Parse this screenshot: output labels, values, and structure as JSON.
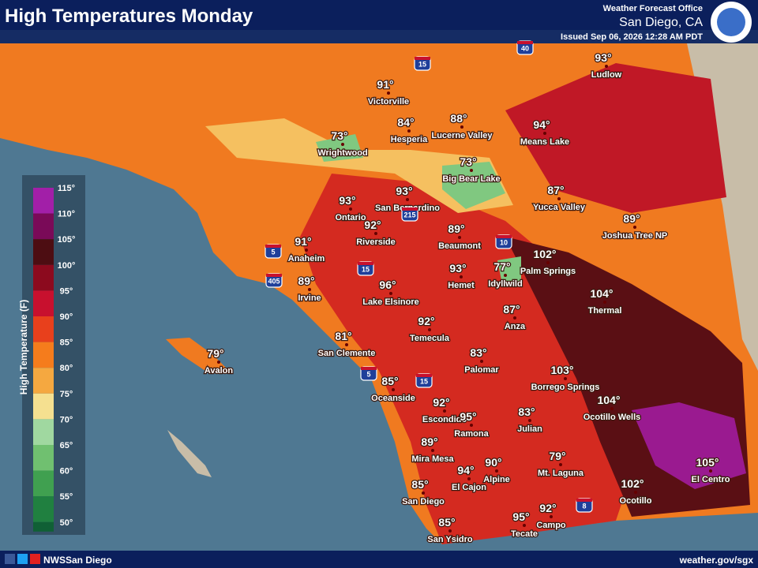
{
  "header": {
    "title": "High Temperatures Monday",
    "office_label": "Weather Forecast Office",
    "office": "San Diego, CA",
    "issued": "Issued Sep 06, 2026 12:28 AM PDT"
  },
  "legend": {
    "title": "High Temperature (F)",
    "ticks": [
      "115°",
      "110°",
      "105°",
      "100°",
      "95°",
      "90°",
      "85°",
      "80°",
      "75°",
      "70°",
      "65°",
      "60°",
      "55°",
      "50°"
    ]
  },
  "cities": [
    {
      "name": "Victorville",
      "temp": "91°"
    },
    {
      "name": "Hesperia",
      "temp": "84°"
    },
    {
      "name": "Lucerne Valley",
      "temp": "88°"
    },
    {
      "name": "Means Lake",
      "temp": "94°"
    },
    {
      "name": "Ludlow",
      "temp": "93°"
    },
    {
      "name": "Wrightwood",
      "temp": "73°"
    },
    {
      "name": "Big Bear Lake",
      "temp": "73°"
    },
    {
      "name": "San Bernardino",
      "temp": "93°"
    },
    {
      "name": "Ontario",
      "temp": "93°"
    },
    {
      "name": "Yucca Valley",
      "temp": "87°"
    },
    {
      "name": "Joshua Tree NP",
      "temp": "89°"
    },
    {
      "name": "Riverside",
      "temp": "92°"
    },
    {
      "name": "Beaumont",
      "temp": "89°"
    },
    {
      "name": "Anaheim",
      "temp": "91°"
    },
    {
      "name": "Palm Springs",
      "temp": "102°"
    },
    {
      "name": "Idyllwild",
      "temp": "77°"
    },
    {
      "name": "Hemet",
      "temp": "93°"
    },
    {
      "name": "Irvine",
      "temp": "89°"
    },
    {
      "name": "Lake Elsinore",
      "temp": "96°"
    },
    {
      "name": "Thermal",
      "temp": "104°"
    },
    {
      "name": "Anza",
      "temp": "87°"
    },
    {
      "name": "Temecula",
      "temp": "92°"
    },
    {
      "name": "San Clemente",
      "temp": "81°"
    },
    {
      "name": "Avalon",
      "temp": "79°"
    },
    {
      "name": "Palomar",
      "temp": "83°"
    },
    {
      "name": "Borrego Springs",
      "temp": "103°"
    },
    {
      "name": "Oceanside",
      "temp": "85°"
    },
    {
      "name": "Ocotillo Wells",
      "temp": "104°"
    },
    {
      "name": "Escondido",
      "temp": "92°"
    },
    {
      "name": "Ramona",
      "temp": "95°"
    },
    {
      "name": "Julian",
      "temp": "83°"
    },
    {
      "name": "Mira Mesa",
      "temp": "89°"
    },
    {
      "name": "Mt. Laguna",
      "temp": "79°"
    },
    {
      "name": "Alpine",
      "temp": "90°"
    },
    {
      "name": "El Cajon",
      "temp": "94°"
    },
    {
      "name": "San Diego",
      "temp": "85°"
    },
    {
      "name": "Ocotillo",
      "temp": "102°"
    },
    {
      "name": "El Centro",
      "temp": "105°"
    },
    {
      "name": "Campo",
      "temp": "92°"
    },
    {
      "name": "Tecate",
      "temp": "95°"
    },
    {
      "name": "San Ysidro",
      "temp": "85°"
    }
  ],
  "shields": [
    "15",
    "40",
    "10",
    "5",
    "405",
    "215",
    "15",
    "5",
    "15",
    "8"
  ],
  "footer": {
    "handle": "NWSSan Diego",
    "url": "weather.gov/sgx"
  }
}
